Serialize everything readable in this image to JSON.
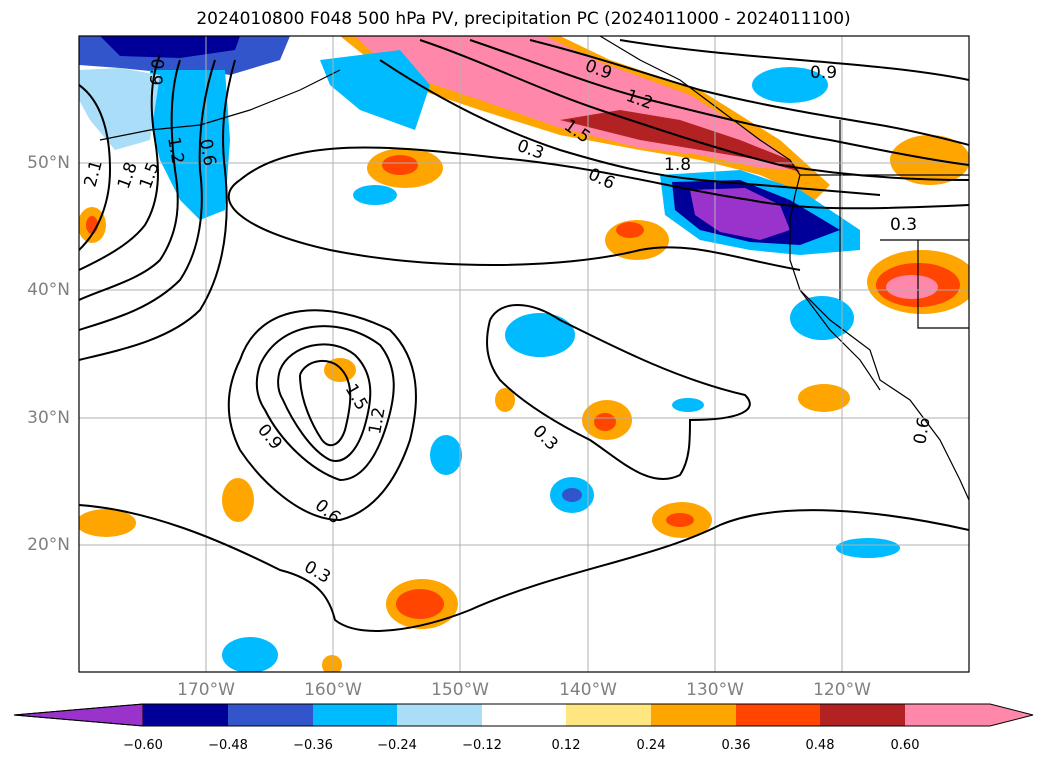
{
  "title": "2024010800 F048 500 hPa PV, precipitation PC (2024011000 - 2024011100)",
  "map": {
    "lon_range": [
      -180,
      -110
    ],
    "lat_range": [
      10,
      60
    ],
    "lon_labels": [
      "170°W",
      "160°W",
      "150°W",
      "140°W",
      "130°W",
      "120°W"
    ],
    "lat_labels": [
      "50°N",
      "40°N",
      "30°N",
      "20°N"
    ]
  },
  "contour_labels": [
    "0.9",
    "1.2",
    "1.5",
    "1.8",
    "2.1",
    "0.6",
    "0.3",
    "0.9",
    "1.2",
    "1.5",
    "1.8",
    "0.6",
    "0.3",
    "1.5",
    "1.2",
    "0.9",
    "0.6",
    "0.3",
    "0.3",
    "0.9",
    "0.6"
  ],
  "colorbar": {
    "labels": [
      "−0.60",
      "−0.48",
      "−0.36",
      "−0.24",
      "−0.12",
      "0.12",
      "0.24",
      "0.36",
      "0.48",
      "0.60"
    ],
    "colors": [
      "#9933cc",
      "#000099",
      "#3355cc",
      "#00bbff",
      "#aaddf7",
      "#ffffff",
      "#ffe680",
      "#ffa500",
      "#ff4500",
      "#b22222",
      "#ff88aa",
      "#ff88aa"
    ]
  }
}
